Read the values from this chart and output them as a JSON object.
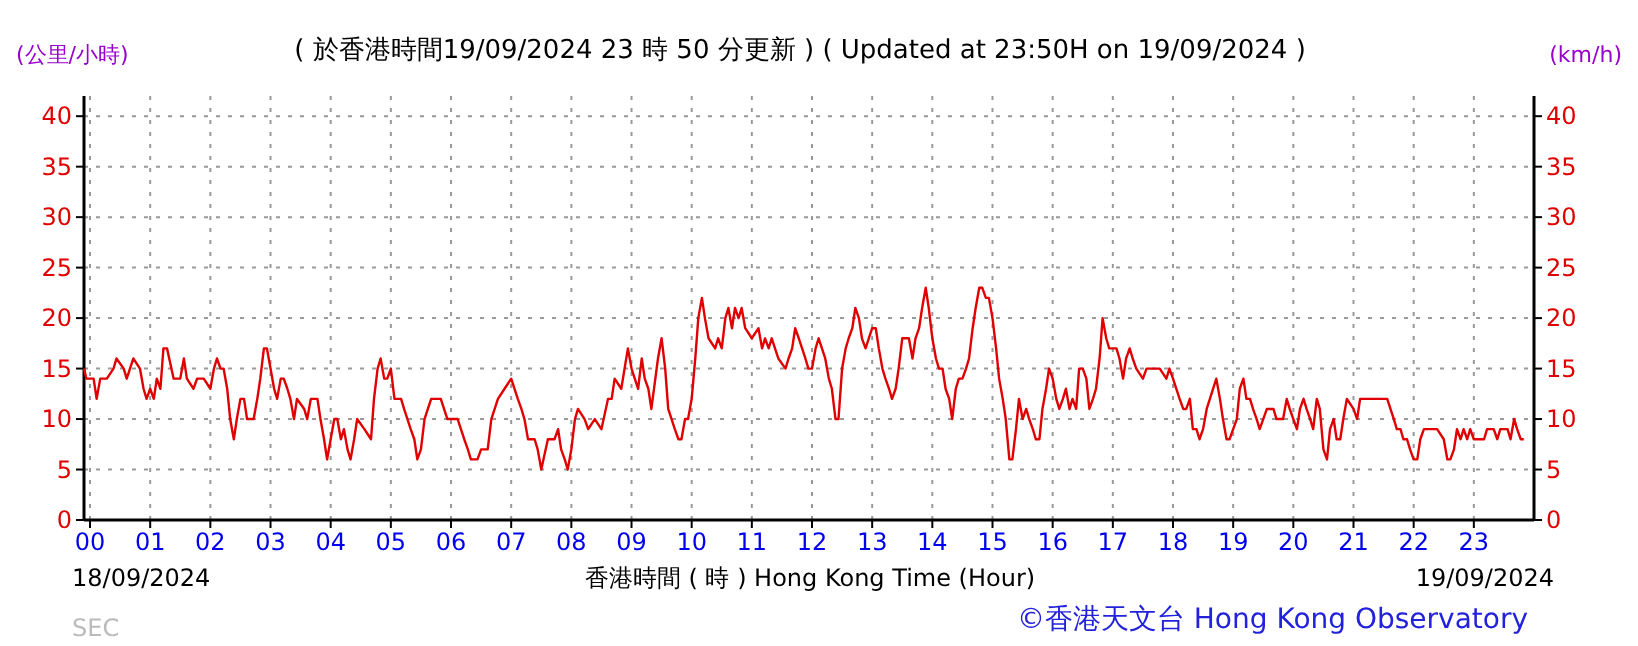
{
  "chart_data": {
    "type": "line",
    "title": "( 於香港時間19/09/2024 23 時 50 分更新 ) ( Updated at 23:50H on 19/09/2024 )",
    "xlabel": "香港時間 ( 時 ) Hong Kong Time (Hour)",
    "ylabel": "(公里/小時)",
    "y2label": "(km/h)",
    "annotations": [
      "18/09/2024",
      "19/09/2024",
      "SEC",
      "©香港天文台 Hong Kong Observatory"
    ],
    "x": [
      -0.1,
      -0.06,
      0.06,
      0.11,
      0.17,
      0.28,
      0.39,
      0.44,
      0.56,
      0.61,
      0.72,
      0.83,
      0.89,
      0.94,
      1.0,
      1.06,
      1.11,
      1.17,
      1.22,
      1.28,
      1.39,
      1.5,
      1.56,
      1.61,
      1.72,
      1.78,
      1.89,
      2.0,
      2.06,
      2.11,
      2.17,
      2.22,
      2.28,
      2.33,
      2.39,
      2.44,
      2.5,
      2.56,
      2.61,
      2.72,
      2.78,
      2.83,
      2.89,
      2.94,
      3.0,
      3.06,
      3.11,
      3.17,
      3.22,
      3.28,
      3.33,
      3.39,
      3.44,
      3.56,
      3.61,
      3.67,
      3.78,
      3.83,
      3.89,
      3.94,
      4.0,
      4.06,
      4.11,
      4.17,
      4.22,
      4.28,
      4.33,
      4.39,
      4.44,
      4.56,
      4.67,
      4.72,
      4.78,
      4.83,
      4.89,
      4.94,
      5.0,
      5.06,
      5.17,
      5.22,
      5.33,
      5.39,
      5.44,
      5.5,
      5.56,
      5.67,
      5.83,
      5.94,
      6.0,
      6.11,
      6.22,
      6.28,
      6.33,
      6.44,
      6.5,
      6.61,
      6.67,
      6.78,
      6.89,
      7.0,
      7.11,
      7.17,
      7.22,
      7.28,
      7.39,
      7.44,
      7.5,
      7.61,
      7.72,
      7.78,
      7.83,
      7.89,
      7.94,
      8.0,
      8.06,
      8.11,
      8.22,
      8.28,
      8.39,
      8.5,
      8.61,
      8.67,
      8.72,
      8.83,
      8.94,
      9.0,
      9.11,
      9.17,
      9.22,
      9.28,
      9.33,
      9.44,
      9.5,
      9.56,
      9.61,
      9.72,
      9.78,
      9.83,
      9.89,
      9.94,
      10.0,
      10.06,
      10.11,
      10.17,
      10.22,
      10.28,
      10.39,
      10.44,
      10.5,
      10.56,
      10.61,
      10.67,
      10.72,
      10.78,
      10.83,
      10.89,
      11.0,
      11.11,
      11.17,
      11.22,
      11.28,
      11.33,
      11.44,
      11.56,
      11.61,
      11.67,
      11.72,
      11.78,
      11.89,
      11.94,
      12.0,
      12.06,
      12.11,
      12.22,
      12.28,
      12.33,
      12.39,
      12.44,
      12.5,
      12.56,
      12.61,
      12.67,
      12.72,
      12.78,
      12.83,
      12.89,
      13.0,
      13.06,
      13.11,
      13.17,
      13.22,
      13.28,
      13.33,
      13.39,
      13.44,
      13.5,
      13.61,
      13.67,
      13.72,
      13.78,
      13.83,
      13.89,
      13.94,
      14.0,
      14.06,
      14.11,
      14.17,
      14.22,
      14.28,
      14.33,
      14.39,
      14.44,
      14.5,
      14.56,
      14.61,
      14.67,
      14.72,
      14.78,
      14.83,
      14.89,
      14.94,
      15.0,
      15.06,
      15.11,
      15.17,
      15.22,
      15.28,
      15.33,
      15.39,
      15.44,
      15.5,
      15.56,
      15.61,
      15.67,
      15.72,
      15.78,
      15.83,
      15.89,
      15.94,
      16.0,
      16.06,
      16.11,
      16.17,
      16.22,
      16.28,
      16.33,
      16.39,
      16.44,
      16.5,
      16.56,
      16.61,
      16.67,
      16.72,
      16.78,
      16.83,
      16.89,
      16.94,
      17.06,
      17.11,
      17.17,
      17.22,
      17.28,
      17.33,
      17.39,
      17.5,
      17.56,
      17.78,
      17.89,
      17.94,
      18.0,
      18.11,
      18.17,
      18.22,
      18.28,
      18.33,
      18.39,
      18.44,
      18.5,
      18.56,
      18.72,
      18.78,
      18.83,
      18.89,
      18.94,
      19.0,
      19.06,
      19.11,
      19.17,
      19.22,
      19.28,
      19.33,
      19.39,
      19.44,
      19.5,
      19.56,
      19.67,
      19.72,
      19.83,
      19.89,
      19.94,
      20.0,
      20.06,
      20.11,
      20.17,
      20.22,
      20.28,
      20.33,
      20.39,
      20.44,
      20.5,
      20.56,
      20.61,
      20.67,
      20.72,
      20.78,
      20.83,
      20.89,
      21.0,
      21.06,
      21.11,
      21.22,
      21.56,
      21.67,
      21.72,
      21.78,
      21.83,
      21.89,
      21.94,
      22.0,
      22.06,
      22.11,
      22.17,
      22.39,
      22.5,
      22.56,
      22.61,
      22.67,
      22.72,
      22.78,
      22.83,
      22.89,
      22.94,
      23.0,
      23.17,
      23.22,
      23.33,
      23.39,
      23.44,
      23.56,
      23.61,
      23.67,
      23.72,
      23.78,
      23.83
    ],
    "series": [
      {
        "color": "#e00000",
        "values": [
          15,
          14,
          14,
          12,
          14,
          14,
          15,
          16,
          15,
          14,
          16,
          15,
          13,
          12,
          13,
          12,
          14,
          13,
          17,
          17,
          14,
          14,
          16,
          14,
          13,
          14,
          14,
          13,
          15,
          16,
          15,
          15,
          13,
          10,
          8,
          10,
          12,
          12,
          10,
          10,
          12,
          14,
          17,
          17,
          15,
          13,
          12,
          14,
          14,
          13,
          12,
          10,
          12,
          11,
          10,
          12,
          12,
          10,
          8,
          6,
          8,
          10,
          10,
          8,
          9,
          7,
          6,
          8,
          10,
          9,
          8,
          12,
          15,
          16,
          14,
          14,
          15,
          12,
          12,
          11,
          9,
          8,
          6,
          7,
          10,
          12,
          12,
          10,
          10,
          10,
          8,
          7,
          6,
          6,
          7,
          7,
          10,
          12,
          13,
          14,
          12,
          11,
          10,
          8,
          8,
          7,
          5,
          8,
          8,
          9,
          7,
          6,
          5,
          7,
          10,
          11,
          10,
          9,
          10,
          9,
          12,
          12,
          14,
          13,
          17,
          15,
          13,
          16,
          14,
          13,
          11,
          16,
          18,
          15,
          11,
          9,
          8,
          8,
          10,
          10,
          12,
          16,
          20,
          22,
          20,
          18,
          17,
          18,
          17,
          20,
          21,
          19,
          21,
          20,
          21,
          19,
          18,
          19,
          17,
          18,
          17,
          18,
          16,
          15,
          16,
          17,
          19,
          18,
          16,
          15,
          15,
          17,
          18,
          16,
          14,
          13,
          10,
          10,
          15,
          17,
          18,
          19,
          21,
          20,
          18,
          17,
          19,
          19,
          17,
          15,
          14,
          13,
          12,
          13,
          15,
          18,
          18,
          16,
          18,
          19,
          21,
          23,
          21,
          18,
          16,
          15,
          15,
          13,
          12,
          10,
          13,
          14,
          14,
          15,
          16,
          19,
          21,
          23,
          23,
          22,
          22,
          20,
          17,
          14,
          12,
          10,
          6,
          6,
          9,
          12,
          10,
          11,
          10,
          9,
          8,
          8,
          11,
          13,
          15,
          14,
          12,
          11,
          12,
          13,
          11,
          12,
          11,
          15,
          15,
          14,
          11,
          12,
          13,
          16,
          20,
          18,
          17,
          17,
          16,
          14,
          16,
          17,
          16,
          15,
          14,
          15,
          15,
          14,
          15,
          14,
          12,
          11,
          11,
          12,
          9,
          9,
          8,
          9,
          11,
          14,
          12,
          10,
          8,
          8,
          9,
          10,
          13,
          14,
          12,
          12,
          11,
          10,
          9,
          10,
          11,
          11,
          10,
          10,
          12,
          11,
          10,
          9,
          11,
          12,
          11,
          10,
          9,
          12,
          11,
          7,
          6,
          9,
          10,
          8,
          8,
          10,
          12,
          11,
          10,
          12,
          12,
          12,
          10,
          9,
          9,
          8,
          8,
          7,
          6,
          6,
          8,
          9,
          9,
          8,
          6,
          6,
          7,
          9,
          8,
          9,
          8,
          9,
          8,
          8,
          9,
          9,
          8,
          9,
          9,
          8,
          10,
          9,
          8,
          8
        ]
      }
    ],
    "xlim": [
      -0.1,
      24
    ],
    "ylim": [
      0,
      42
    ],
    "y2lim": [
      0,
      42
    ],
    "xticks": [
      {
        "value": 0,
        "label": "00"
      },
      {
        "value": 1,
        "label": "01"
      },
      {
        "value": 2,
        "label": "02"
      },
      {
        "value": 3,
        "label": "03"
      },
      {
        "value": 4,
        "label": "04"
      },
      {
        "value": 5,
        "label": "05"
      },
      {
        "value": 6,
        "label": "06"
      },
      {
        "value": 7,
        "label": "07"
      },
      {
        "value": 8,
        "label": "08"
      },
      {
        "value": 9,
        "label": "09"
      },
      {
        "value": 10,
        "label": "10"
      },
      {
        "value": 11,
        "label": "11"
      },
      {
        "value": 12,
        "label": "12"
      },
      {
        "value": 13,
        "label": "13"
      },
      {
        "value": 14,
        "label": "14"
      },
      {
        "value": 15,
        "label": "15"
      },
      {
        "value": 16,
        "label": "16"
      },
      {
        "value": 17,
        "label": "17"
      },
      {
        "value": 18,
        "label": "18"
      },
      {
        "value": 19,
        "label": "19"
      },
      {
        "value": 20,
        "label": "20"
      },
      {
        "value": 21,
        "label": "21"
      },
      {
        "value": 22,
        "label": "22"
      },
      {
        "value": 23,
        "label": "23"
      }
    ],
    "yticks": [
      0,
      5,
      10,
      15,
      20,
      25,
      30,
      35,
      40
    ],
    "y2ticks": [
      0,
      5,
      10,
      15,
      20,
      25,
      30,
      35,
      40
    ],
    "grid": true,
    "line_style": "solid"
  }
}
